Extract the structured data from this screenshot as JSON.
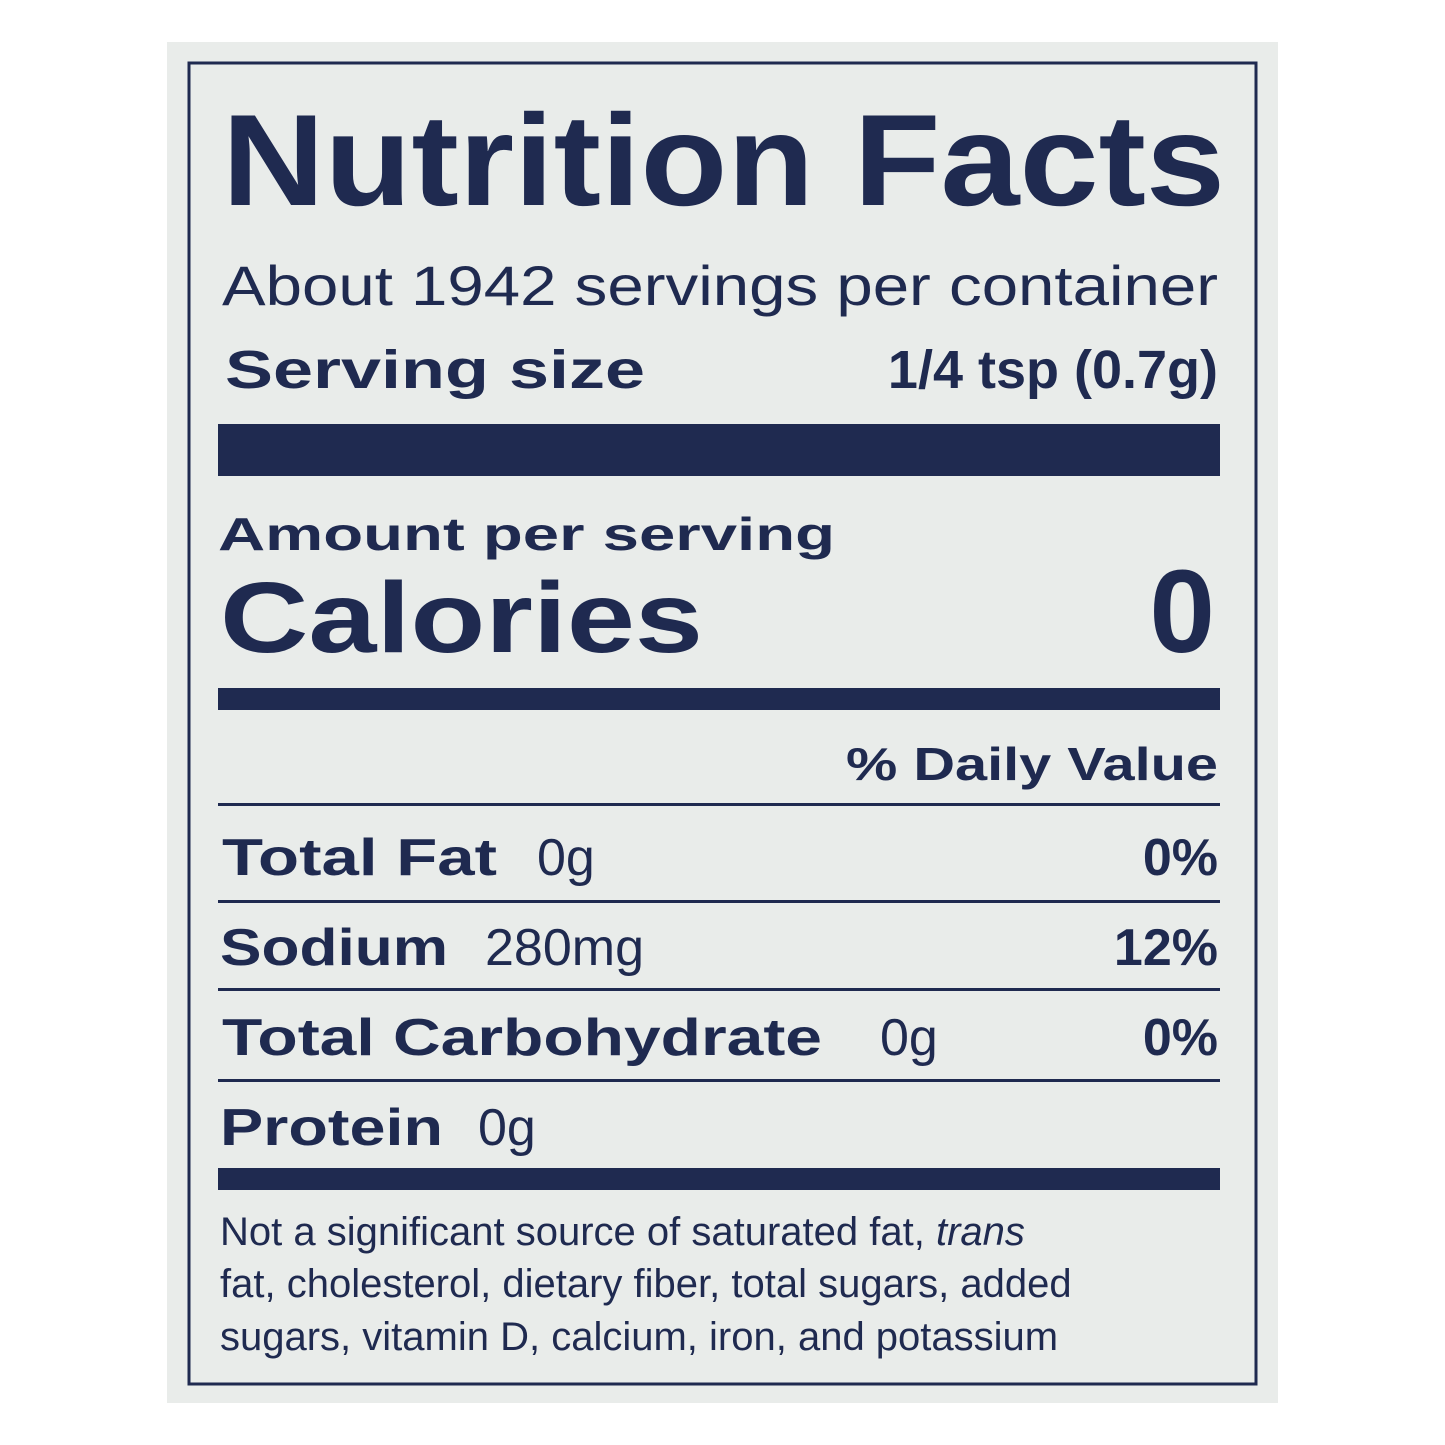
{
  "header": {
    "title": "Nutrition Facts",
    "servings": "About 1942 servings per container",
    "serving_size_label": "Serving size",
    "serving_size_value": "1/4 tsp (0.7g)"
  },
  "calories": {
    "amount_label": "Amount per serving",
    "label": "Calories",
    "value": "0"
  },
  "daily_value_header": "% Daily Value",
  "nutrients": [
    {
      "name": "Total Fat",
      "amount": "0g",
      "dv": "0%"
    },
    {
      "name": "Sodium",
      "amount": "280mg",
      "dv": "12%"
    },
    {
      "name": "Total Carbohydrate",
      "amount": "0g",
      "dv": "0%"
    },
    {
      "name": "Protein",
      "amount": "0g"
    }
  ],
  "footnote": {
    "line1": "Not a significant source of saturated fat,",
    "line1_italic": "trans",
    "line2": "fat, cholesterol, dietary fiber, total sugars, added",
    "line3": "sugars, vitamin D, calcium, iron, and potassium"
  }
}
